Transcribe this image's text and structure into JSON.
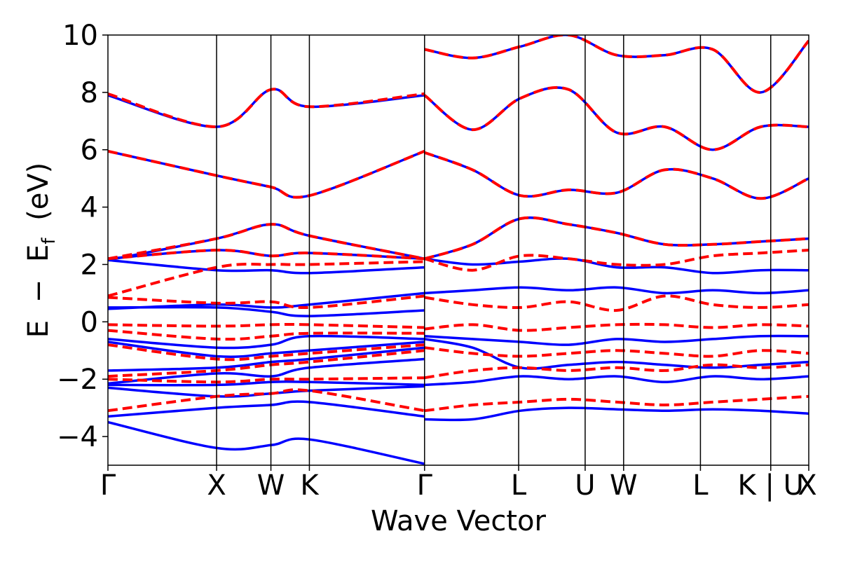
{
  "chart_data": {
    "type": "line",
    "title": "",
    "xlabel": "Wave Vector",
    "ylabel_parts": {
      "e1": "E",
      "minus": "−",
      "e2": "E",
      "sub": "f",
      "unit": "(eV)"
    },
    "ylim": [
      -5,
      10
    ],
    "yticks": [
      {
        "value": 10,
        "label": "10"
      },
      {
        "value": 8,
        "label": "8"
      },
      {
        "value": 6,
        "label": "6"
      },
      {
        "value": 4,
        "label": "4"
      },
      {
        "value": 2,
        "label": "2"
      },
      {
        "value": 0,
        "label": "0"
      },
      {
        "value": -2,
        "label": "−2"
      },
      {
        "value": -4,
        "label": "−4"
      }
    ],
    "xlim": [
      0,
      6.45
    ],
    "kpoints": [
      {
        "label": "Γ",
        "x": 0.0
      },
      {
        "label": "X",
        "x": 1.0
      },
      {
        "label": "W",
        "x": 1.5
      },
      {
        "label": "K",
        "x": 1.854
      },
      {
        "label": "Γ",
        "x": 2.914
      },
      {
        "label": "L",
        "x": 3.78
      },
      {
        "label": "U",
        "x": 4.392
      },
      {
        "label": "W",
        "x": 4.746
      },
      {
        "label": "L",
        "x": 5.453
      },
      {
        "label": "K | U",
        "x": 6.1
      },
      {
        "label": "X",
        "x": 6.45
      }
    ],
    "grid": false,
    "legend": "none",
    "series": [
      {
        "style": "solid",
        "color": "#0000ff",
        "bands": [
          [
            -3.5,
            -4.4,
            -4.3,
            -4.1,
            -4.95
          ],
          [
            -3.3,
            -3.0,
            -2.9,
            -2.8,
            -3.3
          ],
          [
            -2.3,
            -2.6,
            -2.5,
            -2.4,
            -2.25
          ],
          [
            -2.2,
            -2.2,
            -2.1,
            -2.1,
            -2.2
          ],
          [
            -2.15,
            -1.8,
            -1.9,
            -1.6,
            -1.3
          ],
          [
            -1.7,
            -1.6,
            -1.4,
            -1.3,
            -0.9
          ],
          [
            -0.7,
            -1.2,
            -1.1,
            -1.0,
            -0.7
          ],
          [
            -0.6,
            -0.9,
            -0.8,
            -0.5,
            -0.6
          ],
          [
            0.45,
            0.6,
            0.5,
            0.6,
            1.0
          ],
          [
            0.5,
            0.5,
            0.35,
            0.2,
            0.4
          ],
          [
            2.2,
            2.5,
            2.3,
            2.4,
            2.2
          ],
          [
            2.15,
            1.8,
            1.8,
            1.7,
            1.9
          ],
          [
            2.15,
            2.9,
            3.4,
            3.0,
            2.2
          ],
          [
            5.95,
            5.1,
            4.7,
            4.4,
            5.95
          ],
          [
            7.9,
            6.8,
            8.1,
            7.5,
            7.9
          ]
        ],
        "bands_seg2": [
          [
            -3.4,
            -3.4,
            -3.1,
            -3.0,
            -3.05,
            -3.1,
            -3.05,
            -3.1,
            -3.2
          ],
          [
            -2.2,
            -2.1,
            -1.9,
            -2.0,
            -1.9,
            -2.1,
            -1.9,
            -2.0,
            -1.9
          ],
          [
            -0.6,
            -0.9,
            -1.6,
            -1.5,
            -1.4,
            -1.5,
            -1.6,
            -1.5,
            -1.4
          ],
          [
            -0.5,
            -0.6,
            -0.7,
            -0.8,
            -0.6,
            -0.7,
            -0.6,
            -0.5,
            -0.5
          ],
          [
            1.0,
            1.1,
            1.2,
            1.1,
            1.2,
            1.0,
            1.1,
            1.0,
            1.1
          ],
          [
            2.2,
            2.0,
            2.1,
            2.2,
            1.9,
            1.9,
            1.7,
            1.8,
            1.8
          ],
          [
            2.2,
            2.7,
            3.6,
            3.4,
            3.1,
            2.7,
            2.7,
            2.8,
            2.9
          ],
          [
            5.9,
            5.3,
            4.4,
            4.6,
            4.5,
            5.3,
            5.0,
            4.3,
            5.0
          ],
          [
            7.9,
            6.7,
            7.8,
            8.1,
            6.6,
            6.8,
            6.0,
            6.8,
            6.8
          ],
          [
            9.5,
            9.2,
            9.6,
            10.0,
            9.3,
            9.3,
            9.5,
            8.0,
            9.8
          ]
        ]
      },
      {
        "style": "dashed",
        "color": "#ff0000",
        "bands": [
          [
            -3.1,
            -2.6,
            -2.5,
            -2.4,
            -3.1
          ],
          [
            -2.0,
            -2.1,
            -2.0,
            -2.0,
            -1.95
          ],
          [
            -1.9,
            -1.7,
            -1.5,
            -1.4,
            -1.0
          ],
          [
            -0.8,
            -1.3,
            -1.2,
            -1.1,
            -0.8
          ],
          [
            -0.3,
            -0.6,
            -0.5,
            -0.4,
            -0.4
          ],
          [
            -0.1,
            -0.15,
            -0.1,
            -0.1,
            -0.2
          ],
          [
            0.85,
            0.65,
            0.7,
            0.5,
            0.9
          ],
          [
            0.9,
            1.9,
            2.0,
            2.0,
            2.1
          ],
          [
            2.2,
            2.5,
            2.3,
            2.4,
            2.2
          ],
          [
            2.2,
            2.9,
            3.4,
            3.0,
            2.2
          ],
          [
            5.95,
            5.1,
            4.7,
            4.4,
            5.95
          ],
          [
            7.95,
            6.8,
            8.1,
            7.5,
            7.95
          ]
        ],
        "bands_seg2": [
          [
            -3.1,
            -2.9,
            -2.8,
            -2.7,
            -2.8,
            -2.9,
            -2.8,
            -2.7,
            -2.6
          ],
          [
            -1.95,
            -1.7,
            -1.6,
            -1.7,
            -1.6,
            -1.7,
            -1.5,
            -1.6,
            -1.5
          ],
          [
            -0.9,
            -1.1,
            -1.2,
            -1.1,
            -1.0,
            -1.1,
            -1.2,
            -1.0,
            -1.1
          ],
          [
            -0.25,
            -0.1,
            -0.3,
            -0.2,
            -0.1,
            -0.1,
            -0.2,
            -0.1,
            -0.15
          ],
          [
            0.85,
            0.6,
            0.5,
            0.7,
            0.4,
            0.9,
            0.6,
            0.5,
            0.6
          ],
          [
            2.2,
            1.8,
            2.3,
            2.2,
            2.0,
            2.0,
            2.3,
            2.4,
            2.5
          ],
          [
            2.2,
            2.7,
            3.6,
            3.4,
            3.1,
            2.7,
            2.7,
            2.8,
            2.9
          ],
          [
            5.9,
            5.3,
            4.4,
            4.6,
            4.5,
            5.3,
            5.0,
            4.3,
            5.0
          ],
          [
            7.9,
            6.7,
            7.8,
            8.1,
            6.6,
            6.8,
            6.0,
            6.8,
            6.8
          ],
          [
            9.5,
            9.2,
            9.6,
            10.0,
            9.3,
            9.3,
            9.5,
            8.0,
            9.8
          ]
        ]
      }
    ]
  }
}
